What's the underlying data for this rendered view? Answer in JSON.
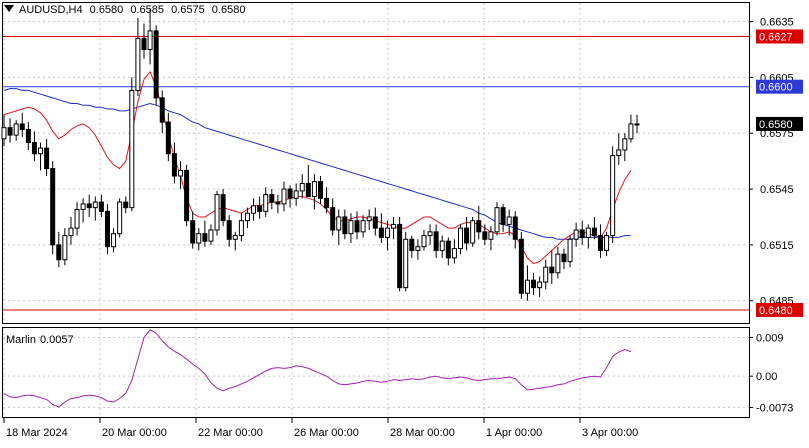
{
  "header": {
    "symbol_timeframe": "AUDUSD,H4",
    "open": "0.6580",
    "high": "0.6585",
    "low": "0.6575",
    "close": "0.6580"
  },
  "indicator": {
    "name": "Marlin",
    "value": "0.0057"
  },
  "price_axis": {
    "ticks": [
      "0.6635",
      "0.6605",
      "0.6575",
      "0.6545",
      "0.6515",
      "0.6485"
    ],
    "tick_values": [
      0.6635,
      0.6605,
      0.6575,
      0.6545,
      0.6515,
      0.6485
    ]
  },
  "indicator_axis": {
    "ticks": [
      "0.009",
      "0.00",
      "-0.0073"
    ],
    "tick_values": [
      0.009,
      0.0,
      -0.0073
    ]
  },
  "time_axis": {
    "labels": [
      "18 Mar 2024",
      "20 Mar 00:00",
      "22 Mar 00:00",
      "26 Mar 00:00",
      "28 Mar 00:00",
      "1 Apr 00:00",
      "3 Apr 00:00"
    ]
  },
  "levels": [
    {
      "label": "0.6627",
      "value": 0.6627,
      "color": "#dd0000"
    },
    {
      "label": "0.6600",
      "value": 0.66,
      "color": "#2e3ad6"
    },
    {
      "label": "0.6480",
      "value": 0.648,
      "color": "#dd0000"
    }
  ],
  "current_price": {
    "label": "0.6580",
    "value": 0.658
  },
  "colors": {
    "bull_candle": "#ffffff",
    "bear_candle": "#000000",
    "fast_ma": "#e3141c",
    "slow_ma": "#2028c8",
    "marlin_line": "#a020b0",
    "grid": "#c8c8c8"
  },
  "chart_data": {
    "type": "candlestick",
    "symbol": "AUDUSD",
    "timeframe": "H4",
    "ylim": [
      0.6473,
      0.6645
    ],
    "candles": [
      [
        0.6572,
        0.6585,
        0.6568,
        0.6578
      ],
      [
        0.6578,
        0.6583,
        0.657,
        0.6574
      ],
      [
        0.6574,
        0.6582,
        0.6571,
        0.658
      ],
      [
        0.658,
        0.6586,
        0.6573,
        0.6577
      ],
      [
        0.6577,
        0.6581,
        0.6566,
        0.657
      ],
      [
        0.657,
        0.6576,
        0.656,
        0.6564
      ],
      [
        0.6564,
        0.657,
        0.6555,
        0.6567
      ],
      [
        0.6567,
        0.6572,
        0.6552,
        0.6556
      ],
      [
        0.6556,
        0.656,
        0.651,
        0.6515
      ],
      [
        0.6515,
        0.6522,
        0.6503,
        0.6507
      ],
      [
        0.6507,
        0.6524,
        0.6504,
        0.652
      ],
      [
        0.652,
        0.653,
        0.6515,
        0.6524
      ],
      [
        0.6524,
        0.6538,
        0.652,
        0.6534
      ],
      [
        0.6534,
        0.654,
        0.6527,
        0.6537
      ],
      [
        0.6537,
        0.6542,
        0.653,
        0.6535
      ],
      [
        0.6535,
        0.6541,
        0.6528,
        0.6538
      ],
      [
        0.6538,
        0.6542,
        0.653,
        0.6533
      ],
      [
        0.6533,
        0.6537,
        0.651,
        0.6514
      ],
      [
        0.6514,
        0.6524,
        0.6511,
        0.6521
      ],
      [
        0.6521,
        0.654,
        0.6519,
        0.6538
      ],
      [
        0.6538,
        0.6541,
        0.6532,
        0.6535
      ],
      [
        0.6535,
        0.6605,
        0.6533,
        0.6598
      ],
      [
        0.6598,
        0.6637,
        0.6595,
        0.6626
      ],
      [
        0.6626,
        0.6634,
        0.6615,
        0.662
      ],
      [
        0.662,
        0.6642,
        0.6612,
        0.663
      ],
      [
        0.663,
        0.6633,
        0.659,
        0.6594
      ],
      [
        0.6594,
        0.6598,
        0.6575,
        0.6581
      ],
      [
        0.6581,
        0.6586,
        0.656,
        0.6564
      ],
      [
        0.6564,
        0.657,
        0.6548,
        0.6552
      ],
      [
        0.6552,
        0.656,
        0.6545,
        0.6555
      ],
      [
        0.6555,
        0.6558,
        0.6525,
        0.6528
      ],
      [
        0.6528,
        0.6533,
        0.6513,
        0.6516
      ],
      [
        0.6516,
        0.6524,
        0.6512,
        0.6521
      ],
      [
        0.6521,
        0.6528,
        0.6514,
        0.6517
      ],
      [
        0.6517,
        0.6526,
        0.6515,
        0.6523
      ],
      [
        0.6523,
        0.6544,
        0.652,
        0.6542
      ],
      [
        0.6542,
        0.6545,
        0.6525,
        0.6528
      ],
      [
        0.6528,
        0.6531,
        0.6514,
        0.6518
      ],
      [
        0.6518,
        0.6522,
        0.6512,
        0.652
      ],
      [
        0.652,
        0.6532,
        0.6517,
        0.6528
      ],
      [
        0.6528,
        0.6535,
        0.6524,
        0.6532
      ],
      [
        0.6532,
        0.654,
        0.6528,
        0.6536
      ],
      [
        0.6536,
        0.6541,
        0.6529,
        0.6533
      ],
      [
        0.6533,
        0.6546,
        0.653,
        0.6542
      ],
      [
        0.6542,
        0.6545,
        0.6534,
        0.6538
      ],
      [
        0.6538,
        0.6542,
        0.6532,
        0.6537
      ],
      [
        0.6537,
        0.6549,
        0.6533,
        0.6545
      ],
      [
        0.6545,
        0.6547,
        0.6535,
        0.654
      ],
      [
        0.654,
        0.6548,
        0.6536,
        0.6544
      ],
      [
        0.6544,
        0.6553,
        0.654,
        0.6548
      ],
      [
        0.6548,
        0.6558,
        0.6542,
        0.6541
      ],
      [
        0.6541,
        0.6553,
        0.6534,
        0.6549
      ],
      [
        0.6549,
        0.6552,
        0.6537,
        0.654
      ],
      [
        0.654,
        0.6546,
        0.6532,
        0.6535
      ],
      [
        0.6535,
        0.654,
        0.652,
        0.6523
      ],
      [
        0.6523,
        0.6534,
        0.6515,
        0.653
      ],
      [
        0.653,
        0.6534,
        0.6518,
        0.6521
      ],
      [
        0.6521,
        0.6532,
        0.6516,
        0.6528
      ],
      [
        0.6528,
        0.6533,
        0.6518,
        0.6522
      ],
      [
        0.6522,
        0.6531,
        0.6519,
        0.6528
      ],
      [
        0.6528,
        0.6534,
        0.6523,
        0.653
      ],
      [
        0.653,
        0.6535,
        0.652,
        0.6524
      ],
      [
        0.6524,
        0.6532,
        0.6516,
        0.6519
      ],
      [
        0.6519,
        0.6528,
        0.6512,
        0.6524
      ],
      [
        0.6524,
        0.653,
        0.6518,
        0.6526
      ],
      [
        0.6526,
        0.653,
        0.649,
        0.6492
      ],
      [
        0.6492,
        0.6522,
        0.649,
        0.6518
      ],
      [
        0.6518,
        0.652,
        0.6508,
        0.6512
      ],
      [
        0.6512,
        0.6518,
        0.6507,
        0.6514
      ],
      [
        0.6514,
        0.6523,
        0.6512,
        0.652
      ],
      [
        0.652,
        0.6526,
        0.6515,
        0.6522
      ],
      [
        0.6522,
        0.6526,
        0.6508,
        0.6512
      ],
      [
        0.6512,
        0.652,
        0.6508,
        0.6517
      ],
      [
        0.6517,
        0.6519,
        0.6504,
        0.6508
      ],
      [
        0.6508,
        0.6518,
        0.6505,
        0.6513
      ],
      [
        0.6513,
        0.6526,
        0.651,
        0.6524
      ],
      [
        0.6524,
        0.653,
        0.6512,
        0.6516
      ],
      [
        0.6516,
        0.653,
        0.6514,
        0.6528
      ],
      [
        0.6528,
        0.6536,
        0.6518,
        0.6522
      ],
      [
        0.6522,
        0.6526,
        0.6515,
        0.6518
      ],
      [
        0.6518,
        0.6525,
        0.6512,
        0.6522
      ],
      [
        0.6522,
        0.6538,
        0.652,
        0.6535
      ],
      [
        0.6535,
        0.6537,
        0.6522,
        0.6526
      ],
      [
        0.6526,
        0.6534,
        0.652,
        0.653
      ],
      [
        0.653,
        0.6533,
        0.6513,
        0.6518
      ],
      [
        0.6518,
        0.6522,
        0.6486,
        0.6489
      ],
      [
        0.6489,
        0.6504,
        0.6485,
        0.6496
      ],
      [
        0.6496,
        0.65,
        0.6488,
        0.6492
      ],
      [
        0.6492,
        0.6498,
        0.6487,
        0.6495
      ],
      [
        0.6495,
        0.6507,
        0.6491,
        0.6503
      ],
      [
        0.6503,
        0.6512,
        0.6494,
        0.65
      ],
      [
        0.65,
        0.6514,
        0.6497,
        0.651
      ],
      [
        0.651,
        0.6513,
        0.6502,
        0.6506
      ],
      [
        0.6506,
        0.652,
        0.6503,
        0.6518
      ],
      [
        0.6518,
        0.6527,
        0.6514,
        0.6523
      ],
      [
        0.6523,
        0.6528,
        0.6515,
        0.6519
      ],
      [
        0.6519,
        0.6526,
        0.6513,
        0.6524
      ],
      [
        0.6524,
        0.653,
        0.6518,
        0.652
      ],
      [
        0.652,
        0.6526,
        0.6508,
        0.6512
      ],
      [
        0.6512,
        0.6522,
        0.6509,
        0.652
      ],
      [
        0.652,
        0.6568,
        0.6516,
        0.6563
      ],
      [
        0.6563,
        0.6575,
        0.6558,
        0.6566
      ],
      [
        0.6566,
        0.6575,
        0.656,
        0.6572
      ],
      [
        0.6572,
        0.6585,
        0.657,
        0.658
      ],
      [
        0.658,
        0.6585,
        0.6575,
        0.658
      ]
    ],
    "fast_ma": [
      0.6585,
      0.6586,
      0.6587,
      0.6588,
      0.6589,
      0.6588,
      0.6586,
      0.6582,
      0.6576,
      0.6572,
      0.6574,
      0.6577,
      0.6579,
      0.658,
      0.6578,
      0.6574,
      0.6568,
      0.6562,
      0.6558,
      0.6556,
      0.656,
      0.6575,
      0.6592,
      0.6604,
      0.6608,
      0.66,
      0.6588,
      0.6574,
      0.6562,
      0.6552,
      0.654,
      0.6532,
      0.653,
      0.653,
      0.6532,
      0.6534,
      0.6535,
      0.6534,
      0.6533,
      0.6532,
      0.6534,
      0.6536,
      0.6536,
      0.6537,
      0.6538,
      0.6538,
      0.6539,
      0.654,
      0.6541,
      0.6541,
      0.654,
      0.6539,
      0.6537,
      0.6534,
      0.653,
      0.6528,
      0.6528,
      0.6529,
      0.653,
      0.653,
      0.6529,
      0.6528,
      0.6527,
      0.6526,
      0.6525,
      0.6524,
      0.6524,
      0.6526,
      0.6528,
      0.653,
      0.653,
      0.6528,
      0.6526,
      0.6524,
      0.6524,
      0.6526,
      0.6527,
      0.6527,
      0.6526,
      0.6524,
      0.6522,
      0.6521,
      0.6521,
      0.6522,
      0.652,
      0.6514,
      0.6508,
      0.6505,
      0.6506,
      0.6509,
      0.6512,
      0.6515,
      0.6518,
      0.652,
      0.6522,
      0.6522,
      0.6521,
      0.652,
      0.6519,
      0.6524,
      0.6534,
      0.6543,
      0.655,
      0.6555
    ],
    "slow_ma": [
      0.6598,
      0.6599,
      0.6599,
      0.6598,
      0.6598,
      0.6597,
      0.6596,
      0.6595,
      0.6594,
      0.6593,
      0.6592,
      0.6591,
      0.6591,
      0.659,
      0.659,
      0.6589,
      0.6589,
      0.6588,
      0.6588,
      0.6587,
      0.6587,
      0.6588,
      0.6589,
      0.659,
      0.6591,
      0.659,
      0.6589,
      0.6587,
      0.6586,
      0.6585,
      0.6583,
      0.6581,
      0.658,
      0.6578,
      0.6577,
      0.6576,
      0.6575,
      0.6574,
      0.6573,
      0.6572,
      0.6571,
      0.657,
      0.6569,
      0.6568,
      0.6567,
      0.6566,
      0.6565,
      0.6564,
      0.6563,
      0.6562,
      0.6561,
      0.656,
      0.6559,
      0.6558,
      0.6557,
      0.6556,
      0.6555,
      0.6554,
      0.6553,
      0.6552,
      0.6551,
      0.655,
      0.6549,
      0.6548,
      0.6547,
      0.6546,
      0.6545,
      0.6544,
      0.6543,
      0.6542,
      0.6541,
      0.654,
      0.6539,
      0.6538,
      0.6537,
      0.6536,
      0.6535,
      0.6534,
      0.6532,
      0.6531,
      0.6529,
      0.6527,
      0.6526,
      0.6525,
      0.6524,
      0.6523,
      0.6522,
      0.6521,
      0.652,
      0.6519,
      0.6519,
      0.6518,
      0.6518,
      0.6518,
      0.6519,
      0.6519,
      0.6519,
      0.6519,
      0.6519,
      0.6519,
      0.6519,
      0.6519,
      0.652,
      0.652
    ],
    "marlin": {
      "ylim": [
        -0.0095,
        0.0112
      ],
      "values": [
        -0.004,
        -0.0048,
        -0.005,
        -0.0046,
        -0.0044,
        -0.0046,
        -0.005,
        -0.0054,
        -0.0066,
        -0.0072,
        -0.006,
        -0.0052,
        -0.005,
        -0.0046,
        -0.0044,
        -0.0046,
        -0.005,
        -0.0058,
        -0.006,
        -0.0052,
        -0.004,
        -0.001,
        0.004,
        0.009,
        0.0108,
        0.01,
        0.0082,
        0.0068,
        0.0058,
        0.005,
        0.004,
        0.0028,
        0.0018,
        0.0005,
        -0.0015,
        -0.0028,
        -0.0034,
        -0.0028,
        -0.0024,
        -0.0018,
        -0.0012,
        -0.0004,
        0.0004,
        0.0012,
        0.0018,
        0.002,
        0.0018,
        0.002,
        0.0024,
        0.0022,
        0.0018,
        0.0012,
        0.0006,
        0.0,
        -0.001,
        -0.0018,
        -0.002,
        -0.0018,
        -0.0016,
        -0.0012,
        -0.001,
        -0.0012,
        -0.0014,
        -0.0012,
        -0.0008,
        -0.001,
        -0.0008,
        -0.0006,
        -0.0008,
        -0.0006,
        -0.0002,
        0.0,
        -0.0004,
        -0.0006,
        -0.0004,
        -0.0002,
        -0.0004,
        -0.0008,
        -0.001,
        -0.0008,
        -0.0006,
        -0.0006,
        -0.0004,
        -0.0002,
        -0.0006,
        -0.002,
        -0.0032,
        -0.003,
        -0.0028,
        -0.0026,
        -0.0024,
        -0.002,
        -0.0018,
        -0.0012,
        -0.0008,
        -0.0004,
        -0.0002,
        0.0,
        -0.0002,
        0.002,
        0.0046,
        0.0056,
        0.0062,
        0.0057
      ]
    }
  }
}
